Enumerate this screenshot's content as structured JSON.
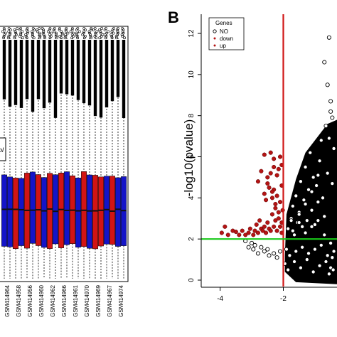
{
  "colors": {
    "box_blue": "#1414c8",
    "box_red": "#d21414",
    "median": "#111111",
    "down_points": "#b41414",
    "up_points": "#b41414",
    "threshold_vertical": "#d01818",
    "threshold_horizontal": "#19c819",
    "no_points": "#000000"
  },
  "chart_data": [
    {
      "type": "box",
      "panel_label": "",
      "legend_fragment": "ol",
      "categories": [
        "GSM414964",
        "GSM414958",
        "GSM414956",
        "GSM414960",
        "GSM414962",
        "GSM414966",
        "GSM414961",
        "GSM414970",
        "GSM414969",
        "GSM414967",
        "GSM414974"
      ],
      "box_colors": [
        "blue",
        "blue",
        "red",
        "blue",
        "red",
        "blue",
        "red",
        "blue",
        "red",
        "blue",
        "red",
        "blue",
        "red",
        "blue",
        "red",
        "blue",
        "red",
        "red",
        "blue",
        "red",
        "blue",
        "blue"
      ],
      "approx_box_quartiles": [
        0.37,
        0.78
      ],
      "note": "partial view; y-axis not visible"
    },
    {
      "type": "scatter",
      "panel_label": "B",
      "title": "",
      "xlabel": "",
      "ylabel": "-log10(pvalue)",
      "xlim": [
        -4.6,
        -0.3
      ],
      "ylim": [
        -0.2,
        13
      ],
      "x_ticks": [
        -4,
        -2
      ],
      "x_tick_labels": [
        "-4",
        "-2"
      ],
      "y_ticks": [
        0,
        2,
        4,
        6,
        8,
        10,
        12
      ],
      "y_tick_labels": [
        "0",
        "2",
        "4",
        "6",
        "8",
        "10",
        "12"
      ],
      "thresholds": {
        "x": -2,
        "y": 2
      },
      "legend": {
        "title": "Genes",
        "position": "top-left",
        "entries": [
          {
            "name": "NO",
            "marker": "open-circle"
          },
          {
            "name": "down",
            "marker": "filled-dot"
          },
          {
            "name": "up",
            "marker": "filled-dot"
          }
        ]
      },
      "series": [
        {
          "name": "down",
          "x": [
            -3.95,
            -3.85,
            -3.75,
            -3.6,
            -3.5,
            -3.4,
            -3.3,
            -3.2,
            -3.1,
            -3.05,
            -2.95,
            -2.9,
            -2.85,
            -2.8,
            -2.75,
            -2.7,
            -2.65,
            -2.6,
            -2.55,
            -2.5,
            -2.45,
            -2.4,
            -2.35,
            -2.3,
            -2.25,
            -2.2,
            -2.15,
            -2.1,
            -2.05,
            -2.02,
            -2.6,
            -2.55,
            -2.45,
            -2.35,
            -2.3,
            -2.25,
            -2.2,
            -2.1,
            -2.05,
            -2.7,
            -2.5,
            -2.4,
            -2.3,
            -2.2,
            -2.15,
            -2.05,
            -2.6,
            -2.4,
            -2.3,
            -2.1,
            -2.8,
            -2.5,
            -2.35,
            -2.25,
            -2.15,
            -2.05
          ],
          "y": [
            2.3,
            2.6,
            2.2,
            2.4,
            2.35,
            2.2,
            2.4,
            2.2,
            2.3,
            2.5,
            2.2,
            2.4,
            2.7,
            2.3,
            2.9,
            2.5,
            2.4,
            2.6,
            2.3,
            2.8,
            2.5,
            2.4,
            3.2,
            2.6,
            2.9,
            2.4,
            3.0,
            2.6,
            2.3,
            3.4,
            4.2,
            3.9,
            4.5,
            4.0,
            4.4,
            3.7,
            4.1,
            3.8,
            4.6,
            5.3,
            5.0,
            5.2,
            5.5,
            5.1,
            5.4,
            5.6,
            6.1,
            6.2,
            5.9,
            6.0,
            4.8,
            4.7,
            4.3,
            3.5,
            3.3,
            2.8
          ]
        },
        {
          "name": "NO",
          "x": [
            -3.2,
            -3.1,
            -3.0,
            -2.95,
            -2.9,
            -2.8,
            -2.7,
            -2.6,
            -2.5,
            -2.45,
            -2.3,
            -2.2,
            -2.1,
            -1.9,
            -1.85,
            -1.75,
            -1.7,
            -1.65,
            -1.6,
            -1.55,
            -1.5,
            -1.45,
            -1.4,
            -1.35,
            -1.3,
            -1.25,
            -1.2,
            -1.15,
            -1.1,
            -1.05,
            -1.0,
            -0.95,
            -0.9,
            -0.85,
            -0.8,
            -0.75,
            -0.7,
            -0.65,
            -0.6,
            -0.55,
            -0.5,
            -0.45,
            -0.4,
            -1.8,
            -1.6,
            -1.4,
            -1.2,
            -1.0,
            -0.8,
            -0.6,
            -0.5,
            -0.45,
            -0.4,
            -1.7,
            -1.5,
            -1.3,
            -1.1,
            -0.9,
            -0.7,
            -1.95,
            -1.85,
            -1.65,
            -1.45,
            -1.25,
            -1.05,
            -0.85,
            -0.65,
            -0.55,
            -0.5,
            -0.42,
            -0.7,
            -0.6,
            -0.5,
            -0.45,
            -0.55,
            -0.9,
            -1.1,
            -1.3,
            -1.5,
            -1.75
          ],
          "y": [
            1.9,
            1.6,
            1.8,
            1.5,
            1.7,
            1.3,
            1.6,
            1.4,
            1.5,
            1.2,
            1.3,
            1.1,
            1.4,
            1.5,
            2.5,
            3.0,
            3.6,
            2.2,
            4.1,
            2.8,
            3.3,
            4.8,
            2.6,
            3.9,
            5.5,
            2.9,
            4.4,
            6.2,
            3.4,
            5.0,
            2.7,
            4.6,
            3.8,
            5.8,
            6.8,
            4.0,
            3.1,
            7.5,
            5.2,
            6.9,
            8.2,
            4.7,
            6.4,
            1.2,
            1.4,
            1.6,
            1.3,
            1.5,
            1.7,
            1.2,
            1.8,
            1.1,
            1.4,
            2.4,
            2.8,
            2.3,
            2.6,
            2.9,
            2.2,
            0.8,
            0.5,
            0.9,
            0.6,
            1.0,
            0.4,
            0.7,
            0.9,
            0.3,
            0.6,
            0.5,
            10.6,
            9.5,
            8.7,
            7.9,
            11.8,
            5.1,
            4.3,
            3.7,
            3.2,
            2.9
          ]
        }
      ]
    }
  ]
}
